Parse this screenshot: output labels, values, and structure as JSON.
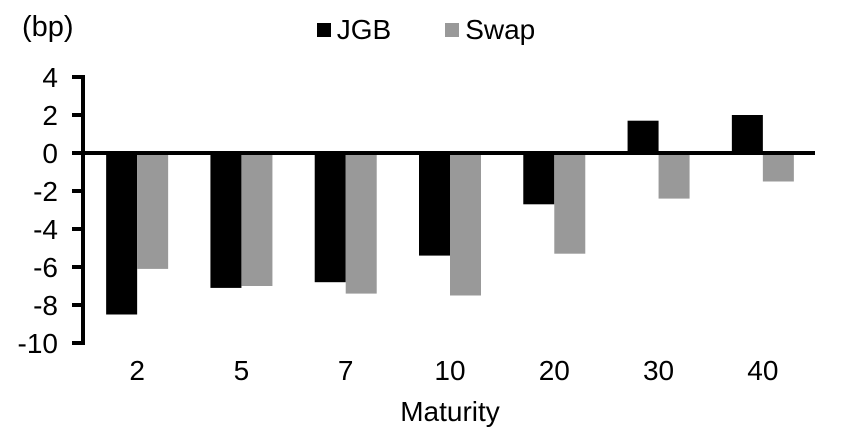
{
  "chart_data": {
    "type": "bar",
    "title": "",
    "unit_label": "(bp)",
    "xlabel": "Maturity",
    "categories": [
      "2",
      "5",
      "7",
      "10",
      "20",
      "30",
      "40"
    ],
    "series": [
      {
        "name": "JGB",
        "color": "#000000",
        "values": [
          -8.5,
          -7.1,
          -6.8,
          -5.4,
          -2.7,
          1.7,
          2.0
        ]
      },
      {
        "name": "Swap",
        "color": "#999999",
        "values": [
          -6.1,
          -7.0,
          -7.4,
          -7.5,
          -5.3,
          -2.4,
          -1.5
        ]
      }
    ],
    "ylim": [
      -10,
      4
    ],
    "yticks": [
      4,
      2,
      0,
      -2,
      -4,
      -6,
      -8,
      -10
    ],
    "legend_position": "top-center",
    "grid": false,
    "axis_color": "#000000",
    "background_color": "#ffffff"
  }
}
